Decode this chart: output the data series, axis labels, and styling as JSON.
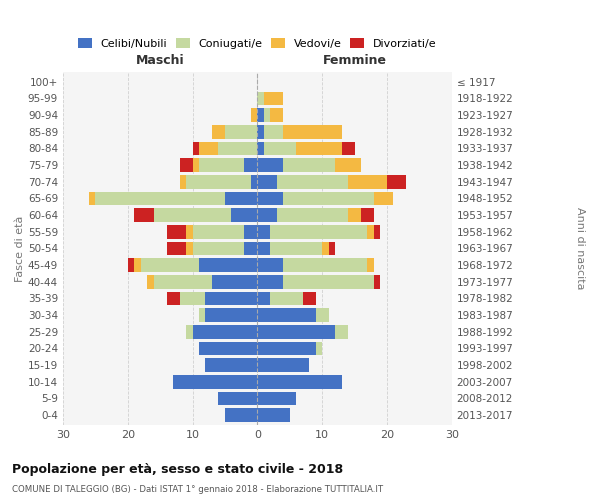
{
  "age_groups": [
    "100+",
    "95-99",
    "90-94",
    "85-89",
    "80-84",
    "75-79",
    "70-74",
    "65-69",
    "60-64",
    "55-59",
    "50-54",
    "45-49",
    "40-44",
    "35-39",
    "30-34",
    "25-29",
    "20-24",
    "15-19",
    "10-14",
    "5-9",
    "0-4"
  ],
  "birth_years": [
    "≤ 1917",
    "1918-1922",
    "1923-1927",
    "1928-1932",
    "1933-1937",
    "1938-1942",
    "1943-1947",
    "1948-1952",
    "1953-1957",
    "1958-1962",
    "1963-1967",
    "1968-1972",
    "1973-1977",
    "1978-1982",
    "1983-1987",
    "1988-1992",
    "1993-1997",
    "1998-2002",
    "2003-2007",
    "2008-2012",
    "2013-2017"
  ],
  "maschi_celibe": [
    0,
    0,
    0,
    0,
    0,
    2,
    1,
    5,
    4,
    2,
    2,
    9,
    7,
    8,
    8,
    10,
    9,
    8,
    13,
    6,
    5
  ],
  "maschi_coniugato": [
    0,
    0,
    0,
    5,
    6,
    7,
    10,
    20,
    12,
    8,
    8,
    9,
    9,
    4,
    1,
    1,
    0,
    0,
    0,
    0,
    0
  ],
  "maschi_vedovo": [
    0,
    0,
    1,
    2,
    3,
    1,
    1,
    1,
    0,
    1,
    1,
    1,
    1,
    0,
    0,
    0,
    0,
    0,
    0,
    0,
    0
  ],
  "maschi_divorziato": [
    0,
    0,
    0,
    0,
    1,
    2,
    0,
    0,
    3,
    3,
    3,
    1,
    0,
    2,
    0,
    0,
    0,
    0,
    0,
    0,
    0
  ],
  "femmine_celibe": [
    0,
    0,
    1,
    1,
    1,
    4,
    3,
    4,
    3,
    2,
    2,
    4,
    4,
    2,
    9,
    12,
    9,
    8,
    13,
    6,
    5
  ],
  "femmine_coniugato": [
    0,
    1,
    1,
    3,
    5,
    8,
    11,
    14,
    11,
    15,
    8,
    13,
    14,
    5,
    2,
    2,
    1,
    0,
    0,
    0,
    0
  ],
  "femmine_vedovo": [
    0,
    3,
    2,
    9,
    7,
    4,
    6,
    3,
    2,
    1,
    1,
    1,
    0,
    0,
    0,
    0,
    0,
    0,
    0,
    0,
    0
  ],
  "femmine_divorziato": [
    0,
    0,
    0,
    0,
    2,
    0,
    3,
    0,
    2,
    1,
    1,
    0,
    1,
    2,
    0,
    0,
    0,
    0,
    0,
    0,
    0
  ],
  "color_celibe": "#4472C4",
  "color_coniugato": "#C5D9A0",
  "color_vedovo": "#F4B942",
  "color_divorziato": "#CC2222",
  "title": "Popolazione per età, sesso e stato civile - 2018",
  "subtitle": "COMUNE DI TALEGGIO (BG) - Dati ISTAT 1° gennaio 2018 - Elaborazione TUTTITALIA.IT",
  "xlabel_left": "Maschi",
  "xlabel_right": "Femmine",
  "ylabel_left": "Fasce di età",
  "ylabel_right": "Anni di nascita",
  "xlim": 30,
  "bg_color": "#f5f5f5",
  "grid_color": "#cccccc"
}
